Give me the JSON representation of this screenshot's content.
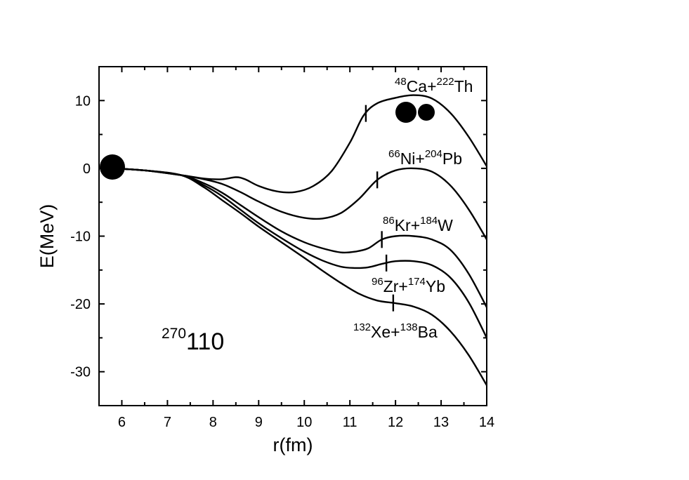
{
  "chart_data": {
    "type": "line",
    "xlabel": "r(fm)",
    "ylabel": "E(MeV)",
    "xlim": [
      5.5,
      14
    ],
    "ylim": [
      -35,
      15
    ],
    "x_ticks": [
      "6",
      "7",
      "8",
      "9",
      "10",
      "11",
      "12",
      "13",
      "14"
    ],
    "y_ticks": [
      "-30",
      "-20",
      "-10",
      "0",
      "10"
    ],
    "nucleus_label": {
      "mass": "270",
      "z": "110"
    },
    "series": [
      {
        "label": {
          "a1": "48",
          "s1": "Ca+",
          "a2": "222",
          "s2": "Th"
        },
        "x": [
          5.8,
          6.5,
          7.3,
          7.8,
          8.2,
          8.5,
          8.7,
          9.0,
          9.4,
          9.8,
          10.2,
          10.6,
          11.0,
          11.3,
          11.6,
          12.0,
          12.4,
          12.8,
          13.2,
          13.6,
          14.0
        ],
        "y": [
          0,
          -0.3,
          -1.0,
          -1.5,
          -1.6,
          -1.3,
          -1.6,
          -2.6,
          -3.4,
          -3.5,
          -2.6,
          -0.4,
          3.8,
          7.8,
          9.6,
          10.4,
          10.8,
          10.3,
          8.2,
          4.7,
          0.3
        ],
        "marker_x": 11.35
      },
      {
        "label": {
          "a1": "66",
          "s1": "Ni+",
          "a2": "204",
          "s2": "Pb"
        },
        "x": [
          5.8,
          6.5,
          7.3,
          7.8,
          8.2,
          8.6,
          9.0,
          9.5,
          10.0,
          10.4,
          10.8,
          11.2,
          11.6,
          12.0,
          12.4,
          12.8,
          13.2,
          13.6,
          14.0
        ],
        "y": [
          0,
          -0.3,
          -1.0,
          -1.6,
          -2.3,
          -3.5,
          -4.9,
          -6.4,
          -7.3,
          -7.4,
          -6.6,
          -4.5,
          -1.7,
          -0.3,
          0.0,
          -0.5,
          -2.5,
          -6.0,
          -10.5
        ],
        "marker_x": 11.6
      },
      {
        "label": {
          "a1": "86",
          "s1": "Kr+",
          "a2": "184",
          "s2": "W"
        },
        "x": [
          5.8,
          6.5,
          7.3,
          7.8,
          8.2,
          8.6,
          9.0,
          9.5,
          10.0,
          10.4,
          10.8,
          11.1,
          11.4,
          11.7,
          12.0,
          12.4,
          12.8,
          13.2,
          13.6,
          14.0
        ],
        "y": [
          0,
          -0.3,
          -1.0,
          -2.2,
          -3.6,
          -5.4,
          -7.2,
          -9.3,
          -10.9,
          -11.8,
          -12.4,
          -12.3,
          -11.8,
          -10.5,
          -10.0,
          -10.0,
          -10.5,
          -12.0,
          -15.5,
          -20.5
        ],
        "marker_x": 11.7
      },
      {
        "label": {
          "a1": "96",
          "s1": "Zr+",
          "a2": "174",
          "s2": "Yb"
        },
        "x": [
          5.8,
          6.5,
          7.3,
          7.8,
          8.2,
          8.6,
          9.0,
          9.5,
          10.0,
          10.4,
          10.8,
          11.1,
          11.4,
          11.7,
          12.0,
          12.4,
          12.8,
          13.2,
          13.6,
          14.0
        ],
        "y": [
          0,
          -0.3,
          -1.0,
          -2.5,
          -4.1,
          -6.1,
          -8.1,
          -10.3,
          -12.3,
          -13.6,
          -14.5,
          -14.7,
          -14.6,
          -14.1,
          -13.7,
          -13.7,
          -14.3,
          -16.1,
          -19.7,
          -25.0
        ],
        "marker_x": 11.8
      },
      {
        "label": {
          "a1": "132",
          "s1": "Xe+",
          "a2": "138",
          "s2": "Ba"
        },
        "x": [
          5.8,
          6.5,
          7.3,
          7.8,
          8.2,
          8.6,
          9.0,
          9.5,
          10.0,
          10.4,
          10.8,
          11.2,
          11.6,
          12.0,
          12.4,
          12.8,
          13.2,
          13.6,
          14.0
        ],
        "y": [
          0,
          -0.3,
          -1.0,
          -2.8,
          -4.7,
          -6.6,
          -8.6,
          -10.9,
          -13.2,
          -15.1,
          -16.9,
          -18.5,
          -19.5,
          -19.9,
          -20.4,
          -21.6,
          -24.0,
          -27.5,
          -32.0
        ],
        "marker_x": 11.95
      }
    ]
  }
}
